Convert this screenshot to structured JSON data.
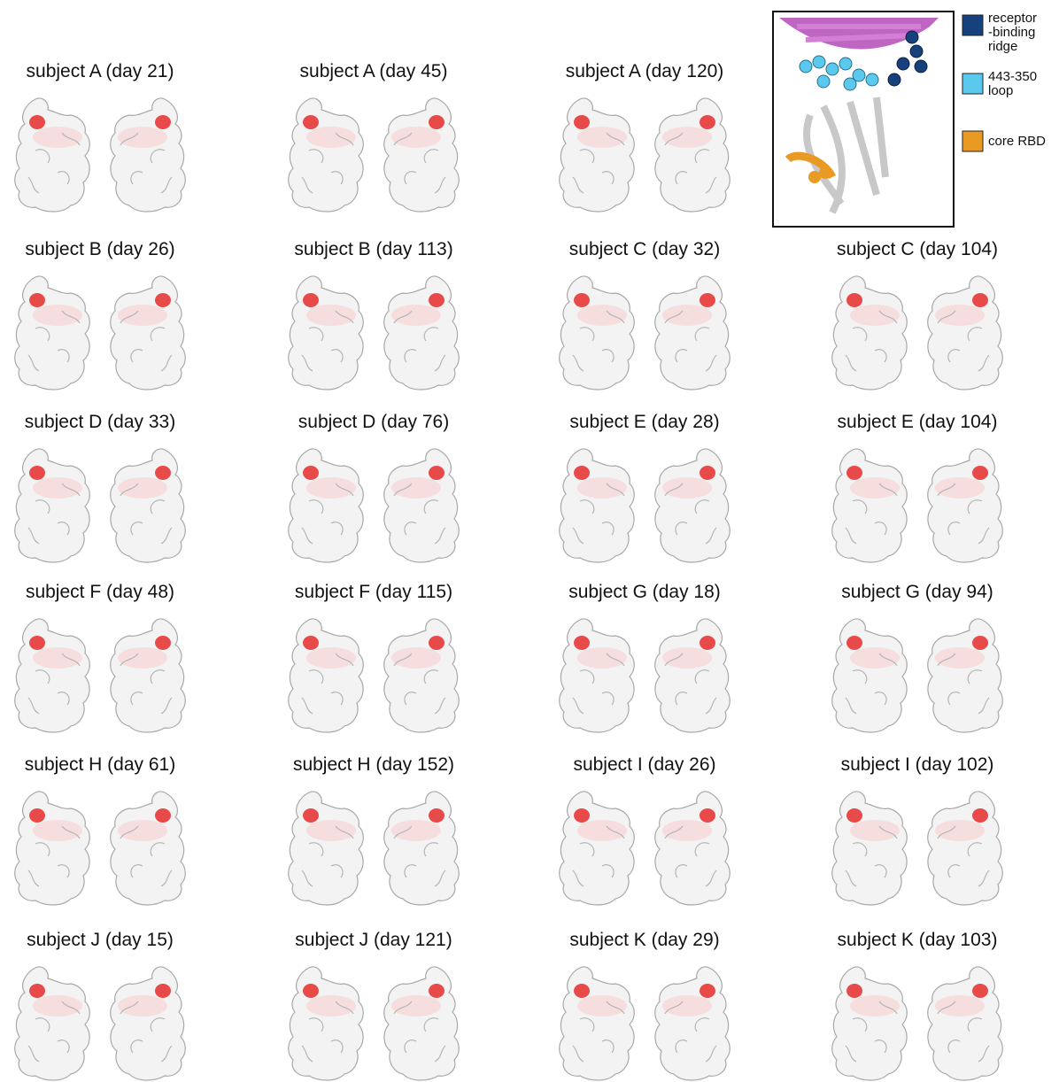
{
  "panels": [
    "subject A (day 21)",
    "subject A (day 45)",
    "subject A (day 120)",
    "subject B (day 26)",
    "subject B (day 113)",
    "subject C (day 32)",
    "subject C (day 104)",
    "subject D (day 33)",
    "subject D (day 76)",
    "subject E (day 28)",
    "subject E (day 104)",
    "subject F (day 48)",
    "subject F (day 115)",
    "subject G (day 18)",
    "subject G (day 94)",
    "subject H (day 61)",
    "subject H (day 152)",
    "subject I (day 26)",
    "subject I (day 102)",
    "subject J (day 15)",
    "subject J (day 121)",
    "subject K (day 29)",
    "subject K (day 103)"
  ],
  "legend": [
    {
      "lines": [
        "receptor",
        "-binding",
        "ridge"
      ],
      "color": "#17417d"
    },
    {
      "lines": [
        "443-350",
        "loop"
      ],
      "color": "#5bc8ee"
    },
    {
      "lines": [
        "core RBD"
      ],
      "color": "#e99a22"
    }
  ]
}
